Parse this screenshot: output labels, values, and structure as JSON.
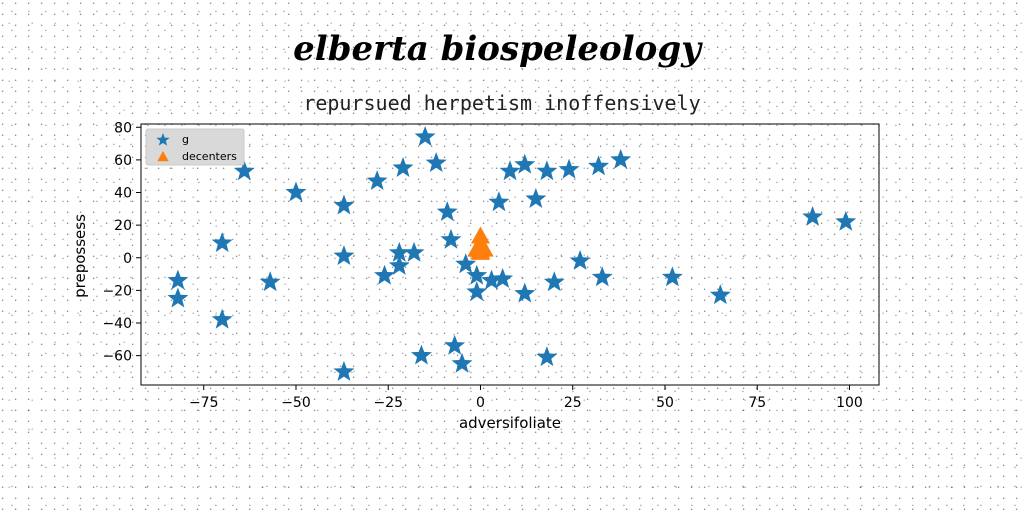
{
  "chart_data": {
    "type": "scatter",
    "title": "elberta biospeleology",
    "subtitle": "repursued herpetism inoffensively",
    "xlabel": "adversifoliate",
    "ylabel": "prepossess",
    "xlim": [
      -92,
      108
    ],
    "ylim": [
      -78,
      82
    ],
    "xticks": [
      -75,
      -50,
      -25,
      0,
      25,
      50,
      75,
      100
    ],
    "yticks": [
      -60,
      -40,
      -20,
      0,
      20,
      40,
      60,
      80
    ],
    "legend_position": "upper-left",
    "grid": false,
    "series": [
      {
        "name": "g",
        "marker": "star",
        "color": "#1f77b4",
        "points": [
          [
            -15,
            74
          ],
          [
            -12,
            58
          ],
          [
            12,
            57
          ],
          [
            8,
            53
          ],
          [
            18,
            53
          ],
          [
            24,
            54
          ],
          [
            32,
            56
          ],
          [
            38,
            60
          ],
          [
            -64,
            53
          ],
          [
            -50,
            40
          ],
          [
            -28,
            47
          ],
          [
            -21,
            55
          ],
          [
            -37,
            32
          ],
          [
            -9,
            28
          ],
          [
            -8,
            11
          ],
          [
            5,
            34
          ],
          [
            15,
            36
          ],
          [
            -70,
            9
          ],
          [
            -37,
            1
          ],
          [
            -22,
            3
          ],
          [
            -18,
            3
          ],
          [
            -22,
            -5
          ],
          [
            -26,
            -11
          ],
          [
            -4,
            -4
          ],
          [
            -82,
            -14
          ],
          [
            -82,
            -25
          ],
          [
            -57,
            -15
          ],
          [
            -70,
            -38
          ],
          [
            -1,
            -11
          ],
          [
            3,
            -14
          ],
          [
            6,
            -13
          ],
          [
            -1,
            -21
          ],
          [
            12,
            -22
          ],
          [
            20,
            -15
          ],
          [
            27,
            -2
          ],
          [
            33,
            -12
          ],
          [
            52,
            -12
          ],
          [
            65,
            -23
          ],
          [
            90,
            25
          ],
          [
            99,
            22
          ],
          [
            -37,
            -70
          ],
          [
            -16,
            -60
          ],
          [
            -7,
            -54
          ],
          [
            -5,
            -65
          ],
          [
            18,
            -61
          ]
        ]
      },
      {
        "name": "decenters",
        "marker": "triangle",
        "color": "#ff7f0e",
        "points": [
          [
            0,
            13
          ],
          [
            0,
            8
          ],
          [
            0,
            4
          ],
          [
            0,
            3
          ],
          [
            -1,
            5
          ],
          [
            1,
            5
          ]
        ]
      }
    ]
  }
}
